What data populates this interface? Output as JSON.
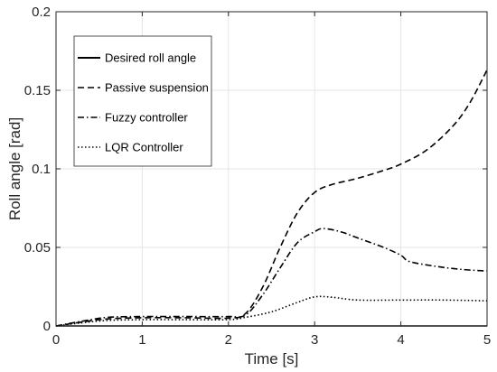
{
  "chart_data": {
    "type": "line",
    "title": "",
    "xlabel": "Time [s]",
    "ylabel": "Roll angle [rad]",
    "xlim": [
      0,
      5
    ],
    "ylim": [
      0,
      0.2
    ],
    "xticks": [
      0,
      1,
      2,
      3,
      4,
      5
    ],
    "xtick_labels": [
      "0",
      "1",
      "2",
      "3",
      "4",
      "5"
    ],
    "yticks": [
      0,
      0.05,
      0.1,
      0.15,
      0.2
    ],
    "ytick_labels": [
      "0",
      "0.05",
      "0.1",
      "0.15",
      "0.2"
    ],
    "grid": true,
    "legend_position": "top-left",
    "series": [
      {
        "name": "Desired roll angle",
        "style": "solid",
        "color": "#000000",
        "x": [
          0,
          5
        ],
        "y": [
          0,
          0
        ]
      },
      {
        "name": "Passive suspension",
        "style": "dashed",
        "color": "#000000",
        "x": [
          0,
          0.3,
          0.6,
          1.0,
          1.5,
          2.0,
          2.2,
          2.4,
          2.6,
          2.8,
          3.0,
          3.2,
          3.5,
          3.8,
          4.0,
          4.3,
          4.6,
          4.8,
          5.0
        ],
        "y": [
          0,
          0.0025,
          0.0045,
          0.0052,
          0.0052,
          0.005,
          0.008,
          0.025,
          0.05,
          0.072,
          0.085,
          0.09,
          0.094,
          0.099,
          0.103,
          0.112,
          0.127,
          0.142,
          0.163
        ]
      },
      {
        "name": "Fuzzy controller",
        "style": "dashdot",
        "color": "#000000",
        "x": [
          0,
          0.3,
          0.6,
          1.0,
          1.5,
          2.0,
          2.2,
          2.4,
          2.6,
          2.8,
          3.0,
          3.1,
          3.3,
          3.5,
          3.8,
          4.0,
          4.1,
          4.4,
          4.7,
          5.0
        ],
        "y": [
          0,
          0.003,
          0.0055,
          0.006,
          0.006,
          0.006,
          0.007,
          0.02,
          0.037,
          0.053,
          0.06,
          0.062,
          0.06,
          0.056,
          0.05,
          0.045,
          0.041,
          0.038,
          0.036,
          0.035
        ]
      },
      {
        "name": "LQR Controller",
        "style": "dotted",
        "color": "#000000",
        "x": [
          0,
          0.3,
          0.6,
          1.0,
          1.5,
          2.0,
          2.2,
          2.5,
          2.8,
          3.0,
          3.2,
          3.5,
          4.0,
          4.5,
          5.0
        ],
        "y": [
          0,
          0.002,
          0.0035,
          0.004,
          0.004,
          0.004,
          0.0055,
          0.009,
          0.015,
          0.0185,
          0.0183,
          0.0165,
          0.0165,
          0.0165,
          0.016
        ]
      }
    ]
  }
}
